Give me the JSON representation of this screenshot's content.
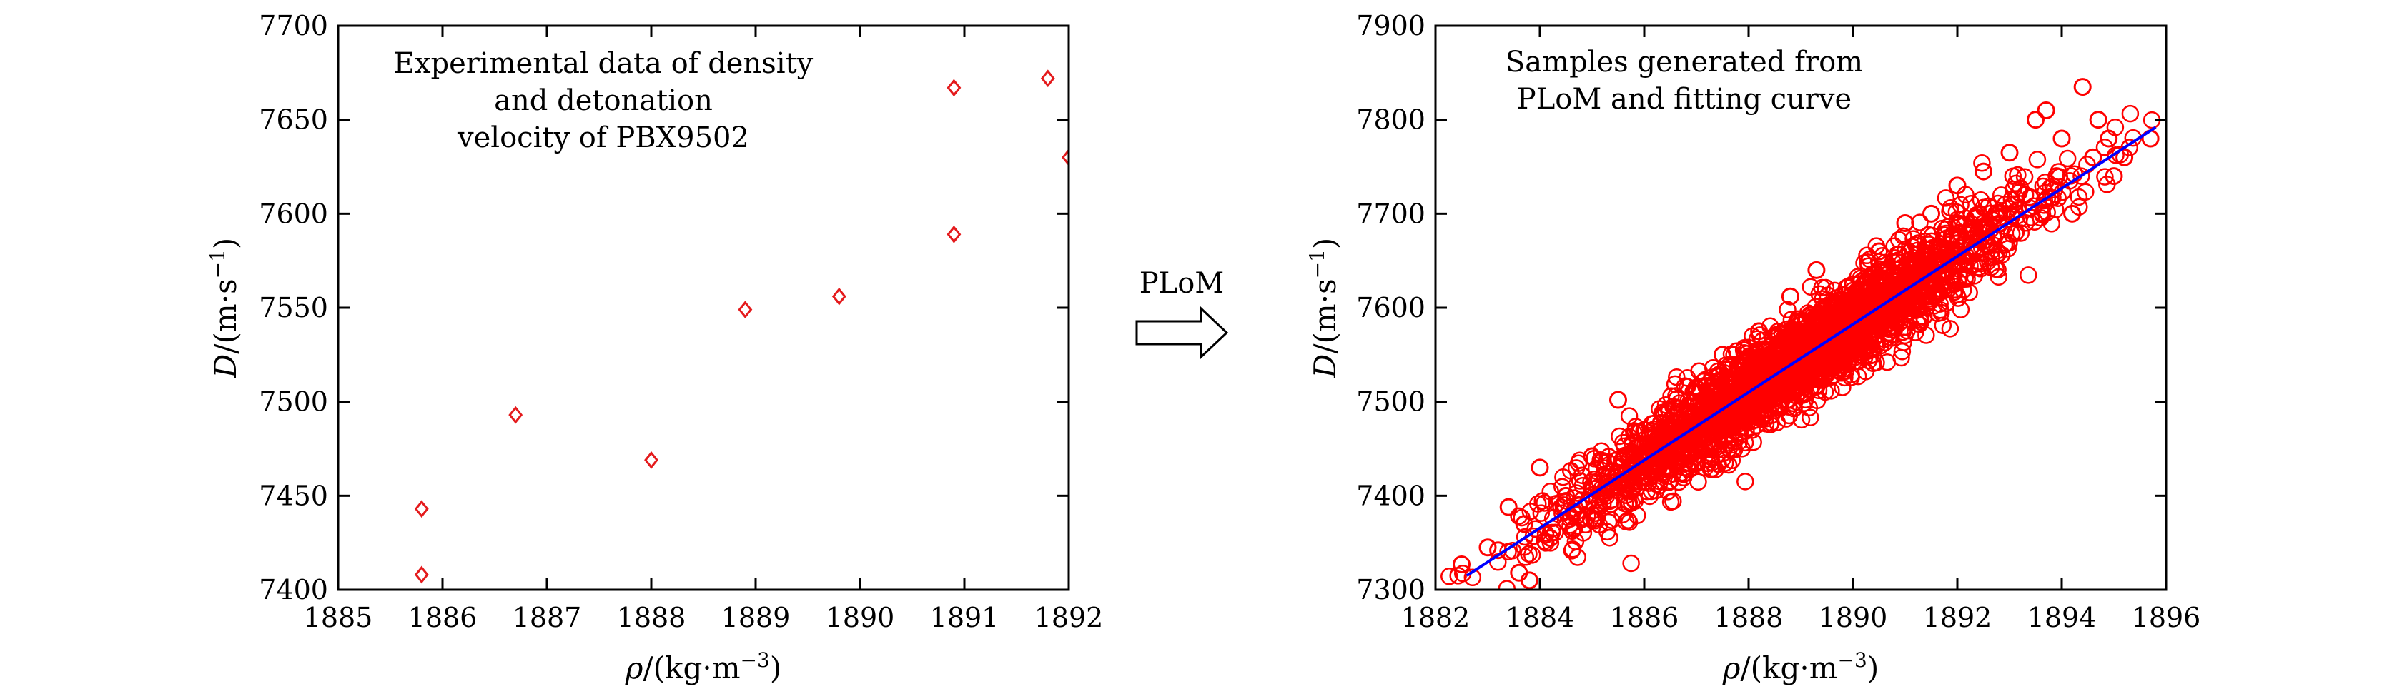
{
  "charts": [
    {
      "annotation_lines": [
        "Experimental data of density",
        "and detonation",
        "velocity of PBX9502"
      ],
      "xlabel": {
        "sym": "ρ",
        "pre": "/(kg·m",
        "exp": "−3",
        "post": ")"
      },
      "ylabel": {
        "sym": "D",
        "pre": "/(m·s",
        "exp": "−1",
        "post": ")"
      },
      "xticks": [
        "1885",
        "1886",
        "1887",
        "1888",
        "1889",
        "1890",
        "1891",
        "1892"
      ],
      "yticks": [
        "7400",
        "7450",
        "7500",
        "7550",
        "7600",
        "7650",
        "7700"
      ]
    },
    {
      "annotation_lines": [
        "Samples generated from",
        "PLoM and fitting curve"
      ],
      "xlabel": {
        "sym": "ρ",
        "pre": "/(kg·m",
        "exp": "−3",
        "post": ")"
      },
      "ylabel": {
        "sym": "D",
        "pre": "/(m·s",
        "exp": "−1",
        "post": ")"
      },
      "xticks": [
        "1882",
        "1884",
        "1886",
        "1888",
        "1890",
        "1892",
        "1894",
        "1896"
      ],
      "yticks": [
        "7300",
        "7400",
        "7500",
        "7600",
        "7700",
        "7800",
        "7900"
      ]
    }
  ],
  "arrow_label": "PLoM",
  "chart_data": [
    {
      "type": "scatter",
      "marker": "diamond",
      "xlim": [
        1885,
        1892
      ],
      "ylim": [
        7400,
        7700
      ],
      "series": [
        {
          "color": "#e41a1c",
          "points": [
            [
              1885.8,
              7443
            ],
            [
              1885.8,
              7408
            ],
            [
              1886.7,
              7493
            ],
            [
              1888.0,
              7469
            ],
            [
              1888.9,
              7549
            ],
            [
              1889.8,
              7556
            ],
            [
              1890.9,
              7667
            ],
            [
              1890.9,
              7589
            ],
            [
              1891.8,
              7672
            ],
            [
              1892.0,
              7630
            ]
          ]
        }
      ]
    },
    {
      "type": "scatter",
      "marker": "circle",
      "xlim": [
        1882,
        1896
      ],
      "ylim": [
        7300,
        7900
      ],
      "series": [
        {
          "color": "#ff0000",
          "points": [
            [
              1882.5,
              7327
            ],
            [
              1883.0,
              7345
            ],
            [
              1883.2,
              7342
            ],
            [
              1883.4,
              7388
            ],
            [
              1883.6,
              7318
            ],
            [
              1883.8,
              7310
            ],
            [
              1884.0,
              7430
            ],
            [
              1883.7,
              7370
            ],
            [
              1884.2,
              7355
            ],
            [
              1884.5,
              7400
            ],
            [
              1884.8,
              7375
            ],
            [
              1885.0,
              7442
            ],
            [
              1885.3,
              7420
            ],
            [
              1885.5,
              7502
            ],
            [
              1885.8,
              7410
            ],
            [
              1886.0,
              7470
            ],
            [
              1886.3,
              7445
            ],
            [
              1886.5,
              7480
            ],
            [
              1886.8,
              7455
            ],
            [
              1887.0,
              7510
            ],
            [
              1887.3,
              7490
            ],
            [
              1887.5,
              7550
            ],
            [
              1887.8,
              7500
            ],
            [
              1888.0,
              7535
            ],
            [
              1888.2,
              7575
            ],
            [
              1888.5,
              7522
            ],
            [
              1888.8,
              7612
            ],
            [
              1889.0,
              7560
            ],
            [
              1889.3,
              7640
            ],
            [
              1889.5,
              7585
            ],
            [
              1889.8,
              7600
            ],
            [
              1890.0,
              7625
            ],
            [
              1890.3,
              7575
            ],
            [
              1890.5,
              7660
            ],
            [
              1890.8,
              7620
            ],
            [
              1891.0,
              7690
            ],
            [
              1891.3,
              7640
            ],
            [
              1891.5,
              7700
            ],
            [
              1891.8,
              7660
            ],
            [
              1892.0,
              7730
            ],
            [
              1892.3,
              7680
            ],
            [
              1892.5,
              7745
            ],
            [
              1892.8,
              7700
            ],
            [
              1893.0,
              7765
            ],
            [
              1893.3,
              7720
            ],
            [
              1893.5,
              7800
            ],
            [
              1893.7,
              7810
            ],
            [
              1893.9,
              7740
            ],
            [
              1894.0,
              7780
            ],
            [
              1894.2,
              7700
            ],
            [
              1894.4,
              7835
            ],
            [
              1894.6,
              7760
            ],
            [
              1894.7,
              7800
            ],
            [
              1894.9,
              7780
            ],
            [
              1895.0,
              7740
            ],
            [
              1895.2,
              7760
            ],
            [
              1895.7,
              7780
            ]
          ]
        }
      ],
      "fit_line": {
        "color": "#0000ff",
        "x": [
          1882.6,
          1895.8
        ],
        "y": [
          7315,
          7792
        ]
      }
    }
  ]
}
